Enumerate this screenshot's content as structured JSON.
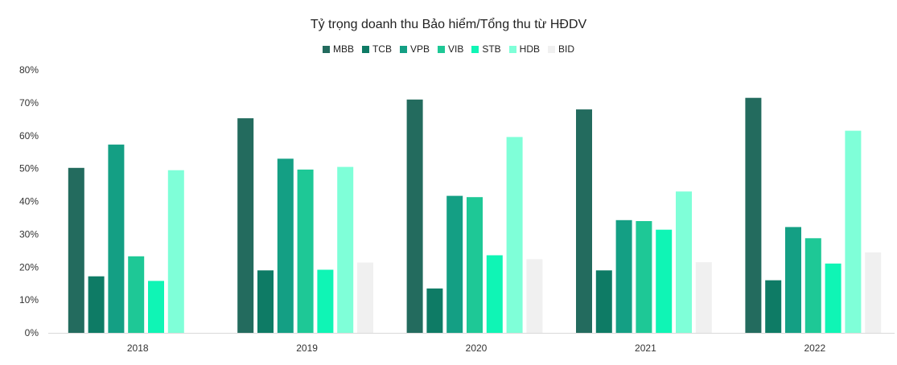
{
  "chart_data": {
    "type": "bar",
    "title": "Tỷ trọng doanh thu Bảo hiểm/Tổng thu từ HĐDV",
    "xlabel": "",
    "ylabel": "",
    "categories": [
      "2018",
      "2019",
      "2020",
      "2021",
      "2022"
    ],
    "ylim": [
      0,
      80
    ],
    "yticks": [
      "0%",
      "10%",
      "20%",
      "30%",
      "40%",
      "50%",
      "60%",
      "70%",
      "80%"
    ],
    "legend_position": "top-center",
    "grid": false,
    "series": [
      {
        "name": "MBB",
        "color": "#236b5e",
        "values": [
          50.2,
          65.3,
          71.0,
          68.0,
          71.5
        ]
      },
      {
        "name": "TCB",
        "color": "#0e7b65",
        "values": [
          17.2,
          19.0,
          13.5,
          19.0,
          16.0
        ]
      },
      {
        "name": "VPB",
        "color": "#149f84",
        "values": [
          57.3,
          53.0,
          41.7,
          34.3,
          32.2
        ]
      },
      {
        "name": "VIB",
        "color": "#1ec896",
        "values": [
          23.3,
          49.7,
          41.3,
          34.0,
          28.8
        ]
      },
      {
        "name": "STB",
        "color": "#0ff5b5",
        "values": [
          15.8,
          19.2,
          23.6,
          31.4,
          21.1
        ]
      },
      {
        "name": "HDB",
        "color": "#7fffd8",
        "values": [
          49.5,
          50.5,
          59.6,
          43.0,
          61.5
        ]
      },
      {
        "name": "BID",
        "color": "#f0f0f0",
        "values": [
          null,
          21.4,
          22.4,
          21.5,
          24.5
        ]
      }
    ]
  }
}
